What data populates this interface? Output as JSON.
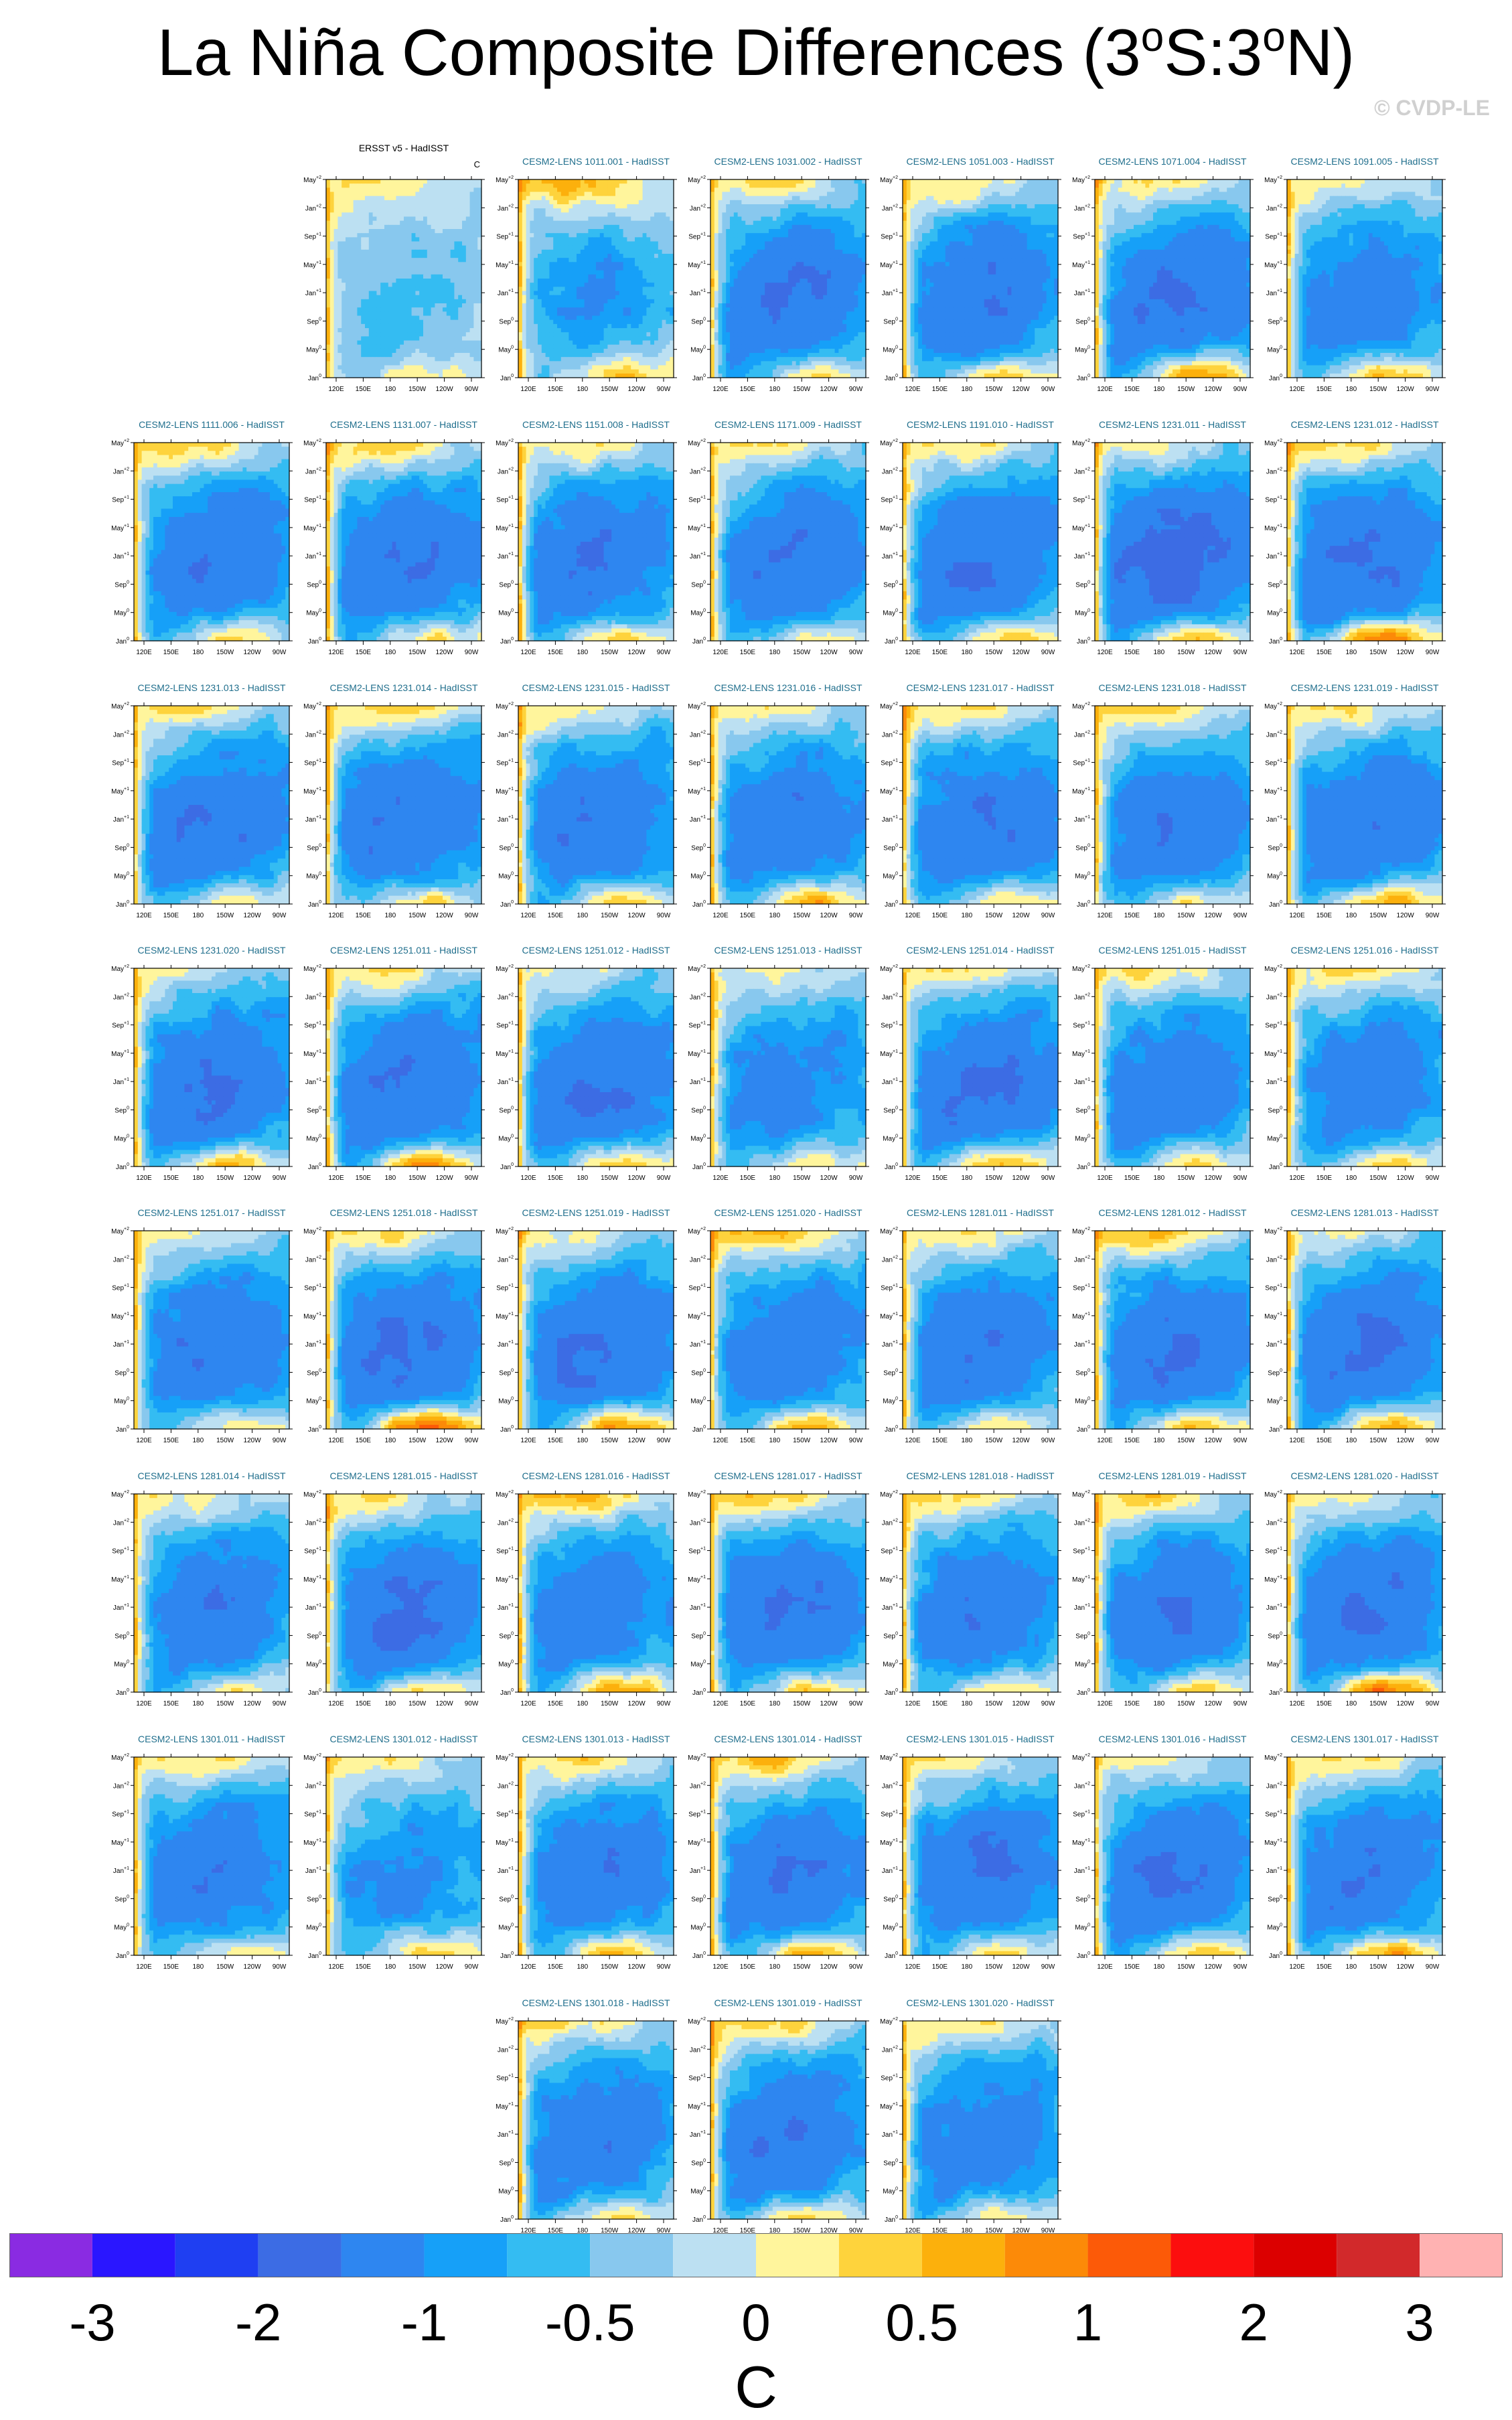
{
  "title": {
    "prefix": "La Niña Composite Differences (3",
    "deg1": "o",
    "mid": "S:3",
    "deg2": "o",
    "suffix": "N)"
  },
  "copyright": "© CVDP-LE",
  "chart_data": {
    "type": "heatmap",
    "description_of_axes": "Hovmoller: x = longitude, y = lagged month",
    "x_ticks": [
      "120E",
      "150E",
      "180",
      "150W",
      "120W",
      "90W"
    ],
    "y_ticks": [
      {
        "base": "Jan",
        "sup": "0"
      },
      {
        "base": "May",
        "sup": "0"
      },
      {
        "base": "Sep",
        "sup": "0"
      },
      {
        "base": "Jan",
        "sup": "+1"
      },
      {
        "base": "May",
        "sup": "+1"
      },
      {
        "base": "Sep",
        "sup": "+1"
      },
      {
        "base": "Jan",
        "sup": "+2"
      },
      {
        "base": "May",
        "sup": "+2"
      }
    ],
    "panels": [
      {
        "title": "ERSST v5 - HadISST",
        "unit": "C",
        "intensity": 0.35,
        "warm_top": 0.4,
        "warm_bottom": 0.45
      },
      {
        "title": "CESM2-LENS 1011.001 - HadISST",
        "intensity": 0.6,
        "warm_top": 1.2,
        "warm_bottom": 1.0
      },
      {
        "title": "CESM2-LENS 1031.002 - HadISST",
        "intensity": 1.0,
        "warm_top": 0.9,
        "warm_bottom": 1.0
      },
      {
        "title": "CESM2-LENS 1051.003 - HadISST",
        "intensity": 0.95,
        "warm_top": 0.9,
        "warm_bottom": 1.1
      },
      {
        "title": "CESM2-LENS 1071.004 - HadISST",
        "intensity": 0.95,
        "warm_top": 0.8,
        "warm_bottom": 1.5
      },
      {
        "title": "CESM2-LENS 1091.005 - HadISST",
        "intensity": 0.85,
        "warm_top": 0.7,
        "warm_bottom": 1.2
      },
      {
        "title": "CESM2-LENS 1111.006 - HadISST",
        "intensity": 0.95,
        "warm_top": 1.0,
        "warm_bottom": 1.1
      },
      {
        "title": "CESM2-LENS 1131.007 - HadISST",
        "intensity": 0.95,
        "warm_top": 1.1,
        "warm_bottom": 1.0
      },
      {
        "title": "CESM2-LENS 1151.008 - HadISST",
        "intensity": 0.95,
        "warm_top": 0.8,
        "warm_bottom": 1.0
      },
      {
        "title": "CESM2-LENS 1171.009 - HadISST",
        "intensity": 0.95,
        "warm_top": 0.7,
        "warm_bottom": 0.8
      },
      {
        "title": "CESM2-LENS 1191.010 - HadISST",
        "intensity": 1.0,
        "warm_top": 0.9,
        "warm_bottom": 1.2
      },
      {
        "title": "CESM2-LENS 1231.011 - HadISST",
        "intensity": 1.15,
        "warm_top": 0.7,
        "warm_bottom": 1.4
      },
      {
        "title": "CESM2-LENS 1231.012 - HadISST",
        "intensity": 1.0,
        "warm_top": 1.0,
        "warm_bottom": 1.9
      },
      {
        "title": "CESM2-LENS 1231.013 - HadISST",
        "intensity": 0.95,
        "warm_top": 0.9,
        "warm_bottom": 1.0
      },
      {
        "title": "CESM2-LENS 1231.014 - HadISST",
        "intensity": 0.95,
        "warm_top": 1.0,
        "warm_bottom": 1.1
      },
      {
        "title": "CESM2-LENS 1231.015 - HadISST",
        "intensity": 0.95,
        "warm_top": 0.7,
        "warm_bottom": 1.3
      },
      {
        "title": "CESM2-LENS 1231.016 - HadISST",
        "intensity": 0.9,
        "warm_top": 0.6,
        "warm_bottom": 1.4
      },
      {
        "title": "CESM2-LENS 1231.017 - HadISST",
        "intensity": 0.95,
        "warm_top": 0.9,
        "warm_bottom": 1.0
      },
      {
        "title": "CESM2-LENS 1231.018 - HadISST",
        "intensity": 0.9,
        "warm_top": 0.9,
        "warm_bottom": 0.9
      },
      {
        "title": "CESM2-LENS 1231.019 - HadISST",
        "intensity": 0.95,
        "warm_top": 0.8,
        "warm_bottom": 1.4
      },
      {
        "title": "CESM2-LENS 1231.020 - HadISST",
        "intensity": 1.0,
        "warm_top": 0.5,
        "warm_bottom": 1.3
      },
      {
        "title": "CESM2-LENS 1251.011 - HadISST",
        "intensity": 1.0,
        "warm_top": 0.9,
        "warm_bottom": 1.5
      },
      {
        "title": "CESM2-LENS 1251.012 - HadISST",
        "intensity": 1.0,
        "warm_top": 0.6,
        "warm_bottom": 1.3
      },
      {
        "title": "CESM2-LENS 1251.013 - HadISST",
        "intensity": 0.8,
        "warm_top": 0.5,
        "warm_bottom": 0.8
      },
      {
        "title": "CESM2-LENS 1251.014 - HadISST",
        "intensity": 1.0,
        "warm_top": 0.9,
        "warm_bottom": 1.4
      },
      {
        "title": "CESM2-LENS 1251.015 - HadISST",
        "intensity": 0.9,
        "warm_top": 0.8,
        "warm_bottom": 1.0
      },
      {
        "title": "CESM2-LENS 1251.016 - HadISST",
        "intensity": 0.85,
        "warm_top": 0.8,
        "warm_bottom": 1.0
      },
      {
        "title": "CESM2-LENS 1251.017 - HadISST",
        "intensity": 0.95,
        "warm_top": 0.6,
        "warm_bottom": 1.0
      },
      {
        "title": "CESM2-LENS 1251.018 - HadISST",
        "intensity": 1.0,
        "warm_top": 0.9,
        "warm_bottom": 2.0
      },
      {
        "title": "CESM2-LENS 1251.019 - HadISST",
        "intensity": 1.0,
        "warm_top": 0.6,
        "warm_bottom": 1.6
      },
      {
        "title": "CESM2-LENS 1251.020 - HadISST",
        "intensity": 0.9,
        "warm_top": 1.2,
        "warm_bottom": 1.4
      },
      {
        "title": "CESM2-LENS 1281.011 - HadISST",
        "intensity": 0.95,
        "warm_top": 0.9,
        "warm_bottom": 1.1
      },
      {
        "title": "CESM2-LENS 1281.012 - HadISST",
        "intensity": 0.95,
        "warm_top": 1.2,
        "warm_bottom": 1.2
      },
      {
        "title": "CESM2-LENS 1281.013 - HadISST",
        "intensity": 1.0,
        "warm_top": 0.6,
        "warm_bottom": 1.3
      },
      {
        "title": "CESM2-LENS 1281.014 - HadISST",
        "intensity": 0.9,
        "warm_top": 0.6,
        "warm_bottom": 0.9
      },
      {
        "title": "CESM2-LENS 1281.015 - HadISST",
        "intensity": 1.0,
        "warm_top": 0.8,
        "warm_bottom": 1.1
      },
      {
        "title": "CESM2-LENS 1281.016 - HadISST",
        "intensity": 0.9,
        "warm_top": 1.2,
        "warm_bottom": 1.5
      },
      {
        "title": "CESM2-LENS 1281.017 - HadISST",
        "intensity": 0.95,
        "warm_top": 1.0,
        "warm_bottom": 1.1
      },
      {
        "title": "CESM2-LENS 1281.018 - HadISST",
        "intensity": 0.9,
        "warm_top": 0.9,
        "warm_bottom": 1.0
      },
      {
        "title": "CESM2-LENS 1281.019 - HadISST",
        "intensity": 0.95,
        "warm_top": 1.0,
        "warm_bottom": 1.0
      },
      {
        "title": "CESM2-LENS 1281.020 - HadISST",
        "intensity": 1.0,
        "warm_top": 0.6,
        "warm_bottom": 1.8
      },
      {
        "title": "CESM2-LENS 1301.011 - HadISST",
        "intensity": 0.9,
        "warm_top": 0.8,
        "warm_bottom": 0.9
      },
      {
        "title": "CESM2-LENS 1301.012 - HadISST",
        "intensity": 0.7,
        "warm_top": 0.6,
        "warm_bottom": 0.8
      },
      {
        "title": "CESM2-LENS 1301.013 - HadISST",
        "intensity": 0.9,
        "warm_top": 0.9,
        "warm_bottom": 1.2
      },
      {
        "title": "CESM2-LENS 1301.014 - HadISST",
        "intensity": 0.95,
        "warm_top": 1.2,
        "warm_bottom": 1.4
      },
      {
        "title": "CESM2-LENS 1301.015 - HadISST",
        "intensity": 0.95,
        "warm_top": 0.8,
        "warm_bottom": 1.1
      },
      {
        "title": "CESM2-LENS 1301.016 - HadISST",
        "intensity": 1.0,
        "warm_top": 0.7,
        "warm_bottom": 1.2
      },
      {
        "title": "CESM2-LENS 1301.017 - HadISST",
        "intensity": 0.95,
        "warm_top": 0.9,
        "warm_bottom": 1.4
      },
      {
        "title": "CESM2-LENS 1301.018 - HadISST",
        "intensity": 0.9,
        "warm_top": 0.7,
        "warm_bottom": 1.0
      },
      {
        "title": "CESM2-LENS 1301.019 - HadISST",
        "intensity": 0.95,
        "warm_top": 1.1,
        "warm_bottom": 1.2
      },
      {
        "title": "CESM2-LENS 1301.020 - HadISST",
        "intensity": 0.85,
        "warm_top": 0.8,
        "warm_bottom": 0.9
      }
    ],
    "colorbar": {
      "colors": [
        "#8a2be2",
        "#2a16ff",
        "#1f3ff2",
        "#3c6ce4",
        "#2e86f0",
        "#16a0f8",
        "#34bcf2",
        "#88c8ee",
        "#bce0f2",
        "#fff59c",
        "#fed33c",
        "#fcb00c",
        "#fc8a08",
        "#fc5a08",
        "#fc0e0e",
        "#dc0000",
        "#d2292b",
        "#ffb2b2"
      ],
      "levels": [
        -3,
        -2.5,
        -2,
        -1.5,
        -1,
        -0.75,
        -0.5,
        -0.25,
        0,
        0.25,
        0.5,
        0.75,
        1,
        1.5,
        2,
        2.5,
        3
      ],
      "tick_labels": [
        "-3",
        "-2",
        "-1",
        "-0.5",
        "0",
        "0.5",
        "1",
        "2",
        "3"
      ],
      "unit": "C"
    }
  }
}
